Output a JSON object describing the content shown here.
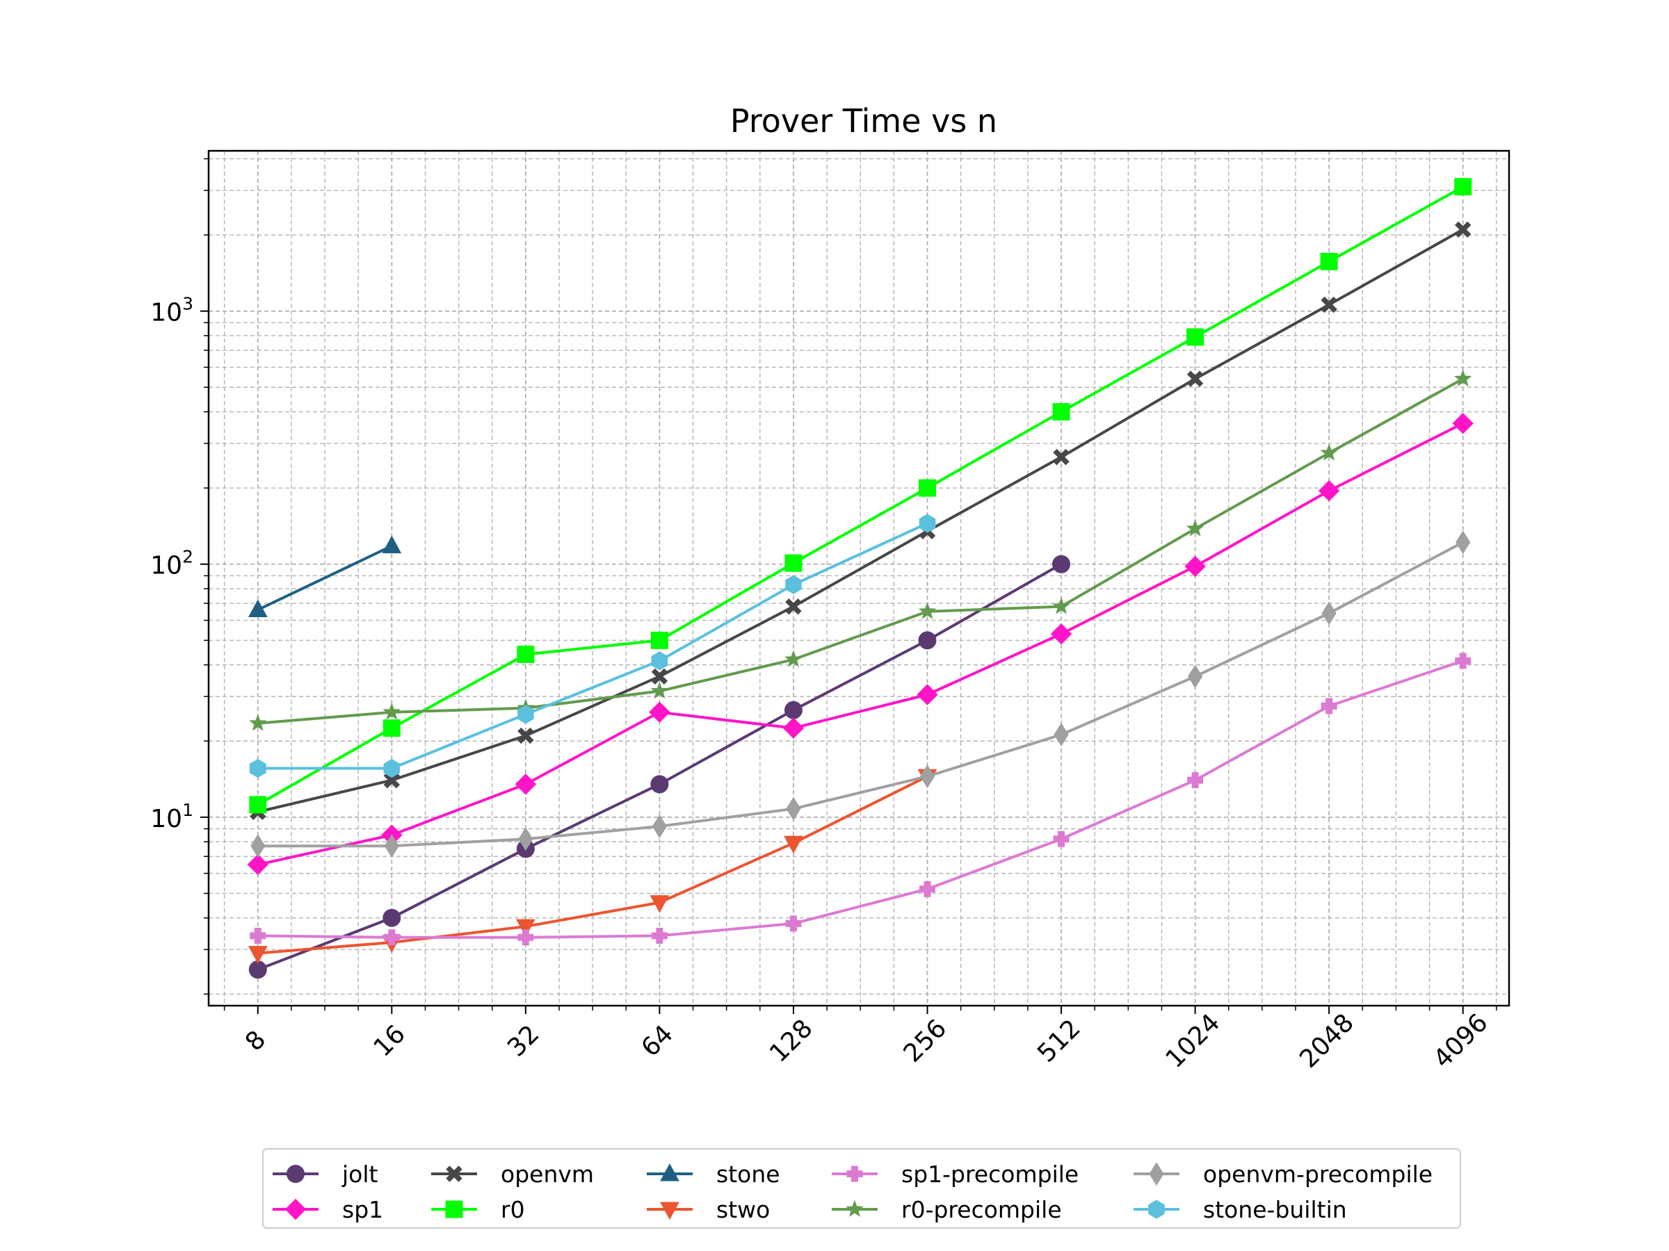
{
  "chart_data": {
    "type": "line",
    "title": "Prover Time vs n",
    "xlabel": "",
    "ylabel": "",
    "x_scale": "log2",
    "y_scale": "log10",
    "x": [
      8,
      16,
      32,
      64,
      128,
      256,
      512,
      1024,
      2048,
      4096
    ],
    "x_tick_labels": [
      "8",
      "16",
      "32",
      "64",
      "128",
      "256",
      "512",
      "1024",
      "2048",
      "4096"
    ],
    "y_ticks": [
      {
        "base": "10",
        "exp": "1",
        "value": 10
      },
      {
        "base": "10",
        "exp": "2",
        "value": 100
      },
      {
        "base": "10",
        "exp": "3",
        "value": 1000
      }
    ],
    "xlim": [
      6.2,
      5200
    ],
    "ylim": [
      1.8,
      4300
    ],
    "grid": true,
    "legend_position": "bottom-center",
    "series": [
      {
        "name": "jolt",
        "color": "#5b3a72",
        "marker": "circle",
        "points": [
          [
            8,
            2.5
          ],
          [
            16,
            4.0
          ],
          [
            32,
            7.5
          ],
          [
            64,
            13.5
          ],
          [
            128,
            26.5
          ],
          [
            256,
            50
          ],
          [
            512,
            100
          ]
        ]
      },
      {
        "name": "sp1",
        "color": "#ff14c8",
        "marker": "diamond",
        "points": [
          [
            8,
            6.5
          ],
          [
            16,
            8.5
          ],
          [
            32,
            13.5
          ],
          [
            64,
            26
          ],
          [
            128,
            22.5
          ],
          [
            256,
            30.5
          ],
          [
            512,
            53
          ],
          [
            1024,
            98
          ],
          [
            2048,
            195
          ],
          [
            4096,
            360
          ]
        ]
      },
      {
        "name": "openvm",
        "color": "#474747",
        "marker": "x",
        "points": [
          [
            8,
            10.5
          ],
          [
            16,
            14
          ],
          [
            32,
            21
          ],
          [
            64,
            36
          ],
          [
            128,
            68
          ],
          [
            256,
            135
          ],
          [
            512,
            265
          ],
          [
            1024,
            540
          ],
          [
            2048,
            1060
          ],
          [
            4096,
            2100
          ]
        ]
      },
      {
        "name": "r0",
        "color": "#00ff00",
        "marker": "square",
        "points": [
          [
            8,
            11.2
          ],
          [
            16,
            22.5
          ],
          [
            32,
            44
          ],
          [
            64,
            50
          ],
          [
            128,
            101
          ],
          [
            256,
            200
          ],
          [
            512,
            400
          ],
          [
            1024,
            790
          ],
          [
            2048,
            1570
          ],
          [
            4096,
            3100
          ]
        ]
      },
      {
        "name": "stone",
        "color": "#1f6082",
        "marker": "triangle-up",
        "points": [
          [
            8,
            66
          ],
          [
            16,
            118
          ]
        ]
      },
      {
        "name": "stwo",
        "color": "#eb5530",
        "marker": "triangle-down",
        "points": [
          [
            8,
            2.9
          ],
          [
            16,
            3.2
          ],
          [
            32,
            3.7
          ],
          [
            64,
            4.6
          ],
          [
            128,
            7.9
          ],
          [
            256,
            14.5
          ]
        ]
      },
      {
        "name": "sp1-precompile",
        "color": "#dc7ad2",
        "marker": "plus",
        "points": [
          [
            8,
            3.4
          ],
          [
            16,
            3.35
          ],
          [
            32,
            3.35
          ],
          [
            64,
            3.4
          ],
          [
            128,
            3.8
          ],
          [
            256,
            5.2
          ],
          [
            512,
            8.2
          ],
          [
            1024,
            14
          ],
          [
            2048,
            27.5
          ],
          [
            4096,
            41.5
          ]
        ]
      },
      {
        "name": "r0-precompile",
        "color": "#639a4e",
        "marker": "star",
        "points": [
          [
            8,
            23.5
          ],
          [
            16,
            26
          ],
          [
            32,
            27
          ],
          [
            64,
            31.5
          ],
          [
            128,
            42
          ],
          [
            256,
            65
          ],
          [
            512,
            68
          ],
          [
            1024,
            138
          ],
          [
            2048,
            275
          ],
          [
            4096,
            540
          ]
        ]
      },
      {
        "name": "openvm-precompile",
        "color": "#a0a0a0",
        "marker": "thin-diamond",
        "points": [
          [
            8,
            7.7
          ],
          [
            16,
            7.7
          ],
          [
            32,
            8.2
          ],
          [
            64,
            9.2
          ],
          [
            128,
            10.8
          ],
          [
            256,
            14.5
          ],
          [
            512,
            21.2
          ],
          [
            1024,
            36
          ],
          [
            2048,
            64
          ],
          [
            4096,
            122
          ]
        ]
      },
      {
        "name": "stone-builtin",
        "color": "#5bc0de",
        "marker": "hexagon",
        "points": [
          [
            8,
            15.6
          ],
          [
            16,
            15.6
          ],
          [
            32,
            25.5
          ],
          [
            64,
            41.5
          ],
          [
            128,
            83
          ],
          [
            256,
            145
          ]
        ]
      }
    ]
  }
}
